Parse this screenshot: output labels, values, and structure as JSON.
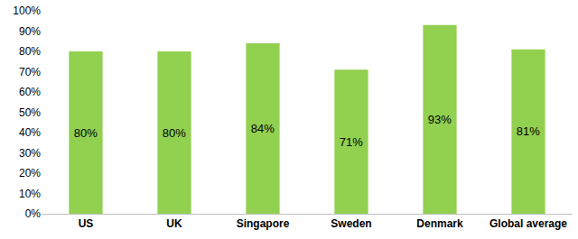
{
  "chart_data": {
    "type": "bar",
    "categories": [
      "US",
      "UK",
      "Singapore",
      "Sweden",
      "Denmark",
      "Global average"
    ],
    "values": [
      80,
      80,
      84,
      71,
      93,
      81
    ],
    "value_labels": [
      "80%",
      "80%",
      "84%",
      "71%",
      "93%",
      "81%"
    ],
    "data_labels": true,
    "color": "#92d050",
    "ylim": [
      0,
      100
    ],
    "yticks": [
      {
        "value": 0,
        "label": "0%"
      },
      {
        "value": 10,
        "label": "10%"
      },
      {
        "value": 20,
        "label": "20%"
      },
      {
        "value": 30,
        "label": "30%"
      },
      {
        "value": 40,
        "label": "40%"
      },
      {
        "value": 50,
        "label": "50%"
      },
      {
        "value": 60,
        "label": "60%"
      },
      {
        "value": 70,
        "label": "70%"
      },
      {
        "value": 80,
        "label": "80%"
      },
      {
        "value": 90,
        "label": "90%"
      },
      {
        "value": 100,
        "label": "100%"
      }
    ],
    "grid": false
  }
}
